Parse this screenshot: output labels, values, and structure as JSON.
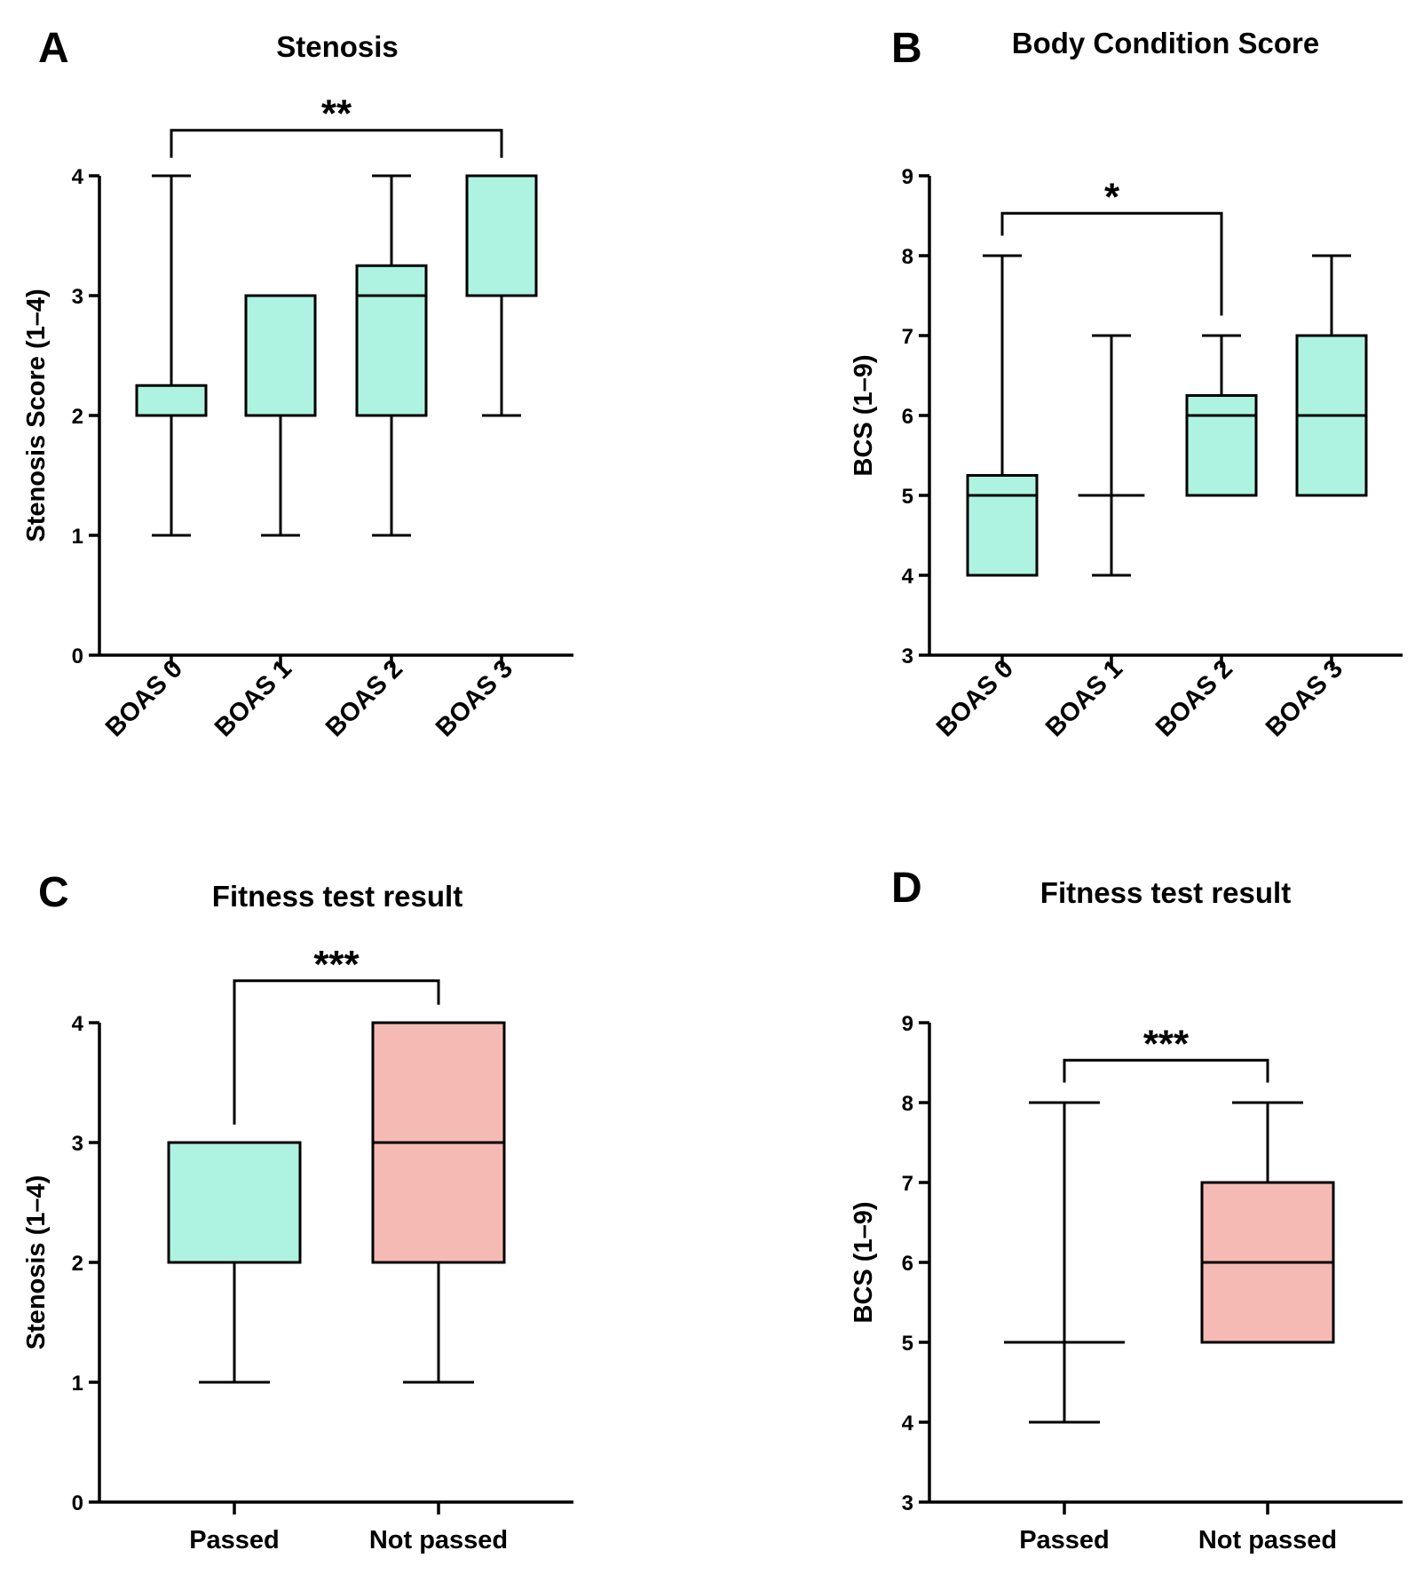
{
  "colors": {
    "teal": "#aef3e1",
    "pink": "#f6bab5",
    "ink": "#000000"
  },
  "chart_data": [
    {
      "panel": "A",
      "type": "box",
      "title": "Stenosis",
      "ylabel": "Stenosis Score (1–4)",
      "xlabel": "",
      "ylim": [
        0,
        4
      ],
      "yticks": [
        0,
        1,
        2,
        3,
        4
      ],
      "categories": [
        "BOAS 0",
        "BOAS 1",
        "BOAS 2",
        "BOAS 3"
      ],
      "rotate_labels": true,
      "boxes": [
        {
          "category": "BOAS 0",
          "min": 1,
          "q1": 2,
          "median": 2,
          "q3": 2.25,
          "max": 4,
          "color": "teal"
        },
        {
          "category": "BOAS 1",
          "min": 1,
          "q1": 2,
          "median": 2,
          "q3": 3,
          "max": 3,
          "color": "teal"
        },
        {
          "category": "BOAS 2",
          "min": 1,
          "q1": 2,
          "median": 3,
          "q3": 3.25,
          "max": 4,
          "color": "teal"
        },
        {
          "category": "BOAS 3",
          "min": 2,
          "q1": 3,
          "median": 3,
          "q3": 4,
          "max": 4,
          "color": "teal"
        }
      ],
      "significance": [
        {
          "from": 0,
          "to": 3,
          "label": "**",
          "y": 4.38,
          "drop_from": 4.15,
          "drop_to": 4.15
        }
      ]
    },
    {
      "panel": "B",
      "type": "box",
      "title": "Body Condition Score",
      "ylabel": "BCS (1–9)",
      "xlabel": "",
      "ylim": [
        3,
        9
      ],
      "yticks": [
        3,
        4,
        5,
        6,
        7,
        8,
        9
      ],
      "categories": [
        "BOAS 0",
        "BOAS 1",
        "BOAS 2",
        "BOAS 3"
      ],
      "rotate_labels": true,
      "boxes": [
        {
          "category": "BOAS 0",
          "min": 4,
          "q1": 4,
          "median": 5,
          "q3": 5.25,
          "max": 8,
          "color": "teal"
        },
        {
          "category": "BOAS 1",
          "min": 4,
          "q1": 5,
          "median": 5,
          "q3": 5,
          "max": 7,
          "color": "teal"
        },
        {
          "category": "BOAS 2",
          "min": 5,
          "q1": 5,
          "median": 6,
          "q3": 6.25,
          "max": 7,
          "color": "teal"
        },
        {
          "category": "BOAS 3",
          "min": 5,
          "q1": 5,
          "median": 6,
          "q3": 7,
          "max": 8,
          "color": "teal"
        }
      ],
      "significance": [
        {
          "from": 0,
          "to": 2,
          "label": "*",
          "y": 8.53,
          "drop_from": 8.25,
          "drop_to": 7.25
        }
      ]
    },
    {
      "panel": "C",
      "type": "box",
      "title": "Fitness test result",
      "ylabel": "Stenosis (1–4)",
      "xlabel": "",
      "ylim": [
        0,
        4
      ],
      "yticks": [
        0,
        1,
        2,
        3,
        4
      ],
      "categories": [
        "Passed",
        "Not passed"
      ],
      "rotate_labels": false,
      "boxes": [
        {
          "category": "Passed",
          "min": 1,
          "q1": 2,
          "median": 2,
          "q3": 3,
          "max": 3,
          "color": "teal"
        },
        {
          "category": "Not passed",
          "min": 1,
          "q1": 2,
          "median": 3,
          "q3": 4,
          "max": 4,
          "color": "pink"
        }
      ],
      "significance": [
        {
          "from": 0,
          "to": 1,
          "label": "***",
          "y": 4.35,
          "drop_from": 3.15,
          "drop_to": 4.15
        }
      ]
    },
    {
      "panel": "D",
      "type": "box",
      "title": "Fitness test result",
      "ylabel": "BCS (1–9)",
      "xlabel": "",
      "ylim": [
        3,
        9
      ],
      "yticks": [
        3,
        4,
        5,
        6,
        7,
        8,
        9
      ],
      "categories": [
        "Passed",
        "Not passed"
      ],
      "rotate_labels": false,
      "boxes": [
        {
          "category": "Passed",
          "min": 4,
          "q1": 5,
          "median": 5,
          "q3": 5,
          "max": 8,
          "color": "teal"
        },
        {
          "category": "Not passed",
          "min": 5,
          "q1": 5,
          "median": 6,
          "q3": 7,
          "max": 8,
          "color": "pink"
        }
      ],
      "significance": [
        {
          "from": 0,
          "to": 1,
          "label": "***",
          "y": 8.53,
          "drop_from": 8.25,
          "drop_to": 8.25
        }
      ]
    }
  ]
}
